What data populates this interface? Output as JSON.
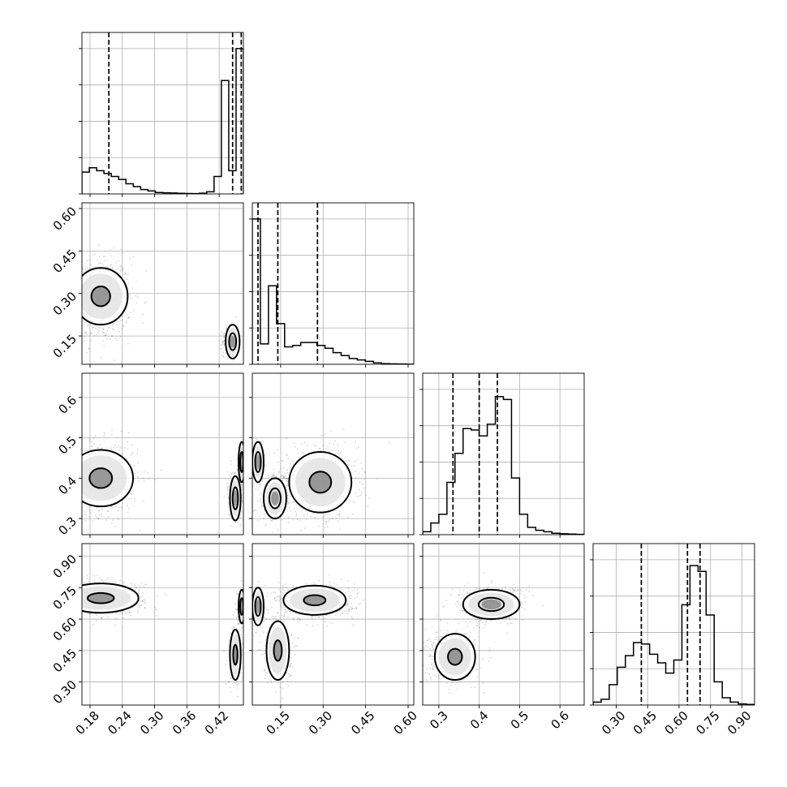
{
  "chart_data": {
    "type": "corner",
    "title": "",
    "columns": [
      {
        "range": [
          0.165,
          0.465
        ],
        "ticks": [
          "0.18",
          "0.24",
          "0.30",
          "0.36",
          "0.42"
        ],
        "tick_values": [
          0.18,
          0.24,
          0.3,
          0.36,
          0.42
        ],
        "quantiles": [
          0.215,
          0.445,
          0.461
        ]
      },
      {
        "range": [
          0.05,
          0.62
        ],
        "ticks": [
          "0.15",
          "0.30",
          "0.45",
          "0.60"
        ],
        "tick_values": [
          0.15,
          0.3,
          0.45,
          0.6
        ],
        "quantiles": [
          0.07,
          0.14,
          0.28
        ]
      },
      {
        "range": [
          0.26,
          0.66
        ],
        "ticks": [
          "0.3",
          "0.4",
          "0.5",
          "0.6"
        ],
        "tick_values": [
          0.3,
          0.4,
          0.5,
          0.6
        ],
        "quantiles": [
          0.335,
          0.4,
          0.445
        ]
      },
      {
        "range": [
          0.19,
          0.96
        ],
        "ticks": [
          "0.30",
          "0.45",
          "0.60",
          "0.75",
          "0.90"
        ],
        "tick_values": [
          0.3,
          0.45,
          0.6,
          0.75,
          0.9
        ],
        "quantiles": [
          0.42,
          0.64,
          0.7
        ]
      }
    ],
    "histograms": [
      {
        "heights": [
          0.15,
          0.18,
          0.16,
          0.14,
          0.12,
          0.1,
          0.07,
          0.05,
          0.03,
          0.02,
          0.01,
          0.008,
          0.006,
          0.004,
          0.003,
          0.002,
          0.005,
          0.015,
          0.12,
          0.78,
          0.16,
          1.0
        ]
      },
      {
        "heights": [
          1.0,
          0.14,
          0.54,
          0.28,
          0.12,
          0.13,
          0.15,
          0.15,
          0.13,
          0.11,
          0.08,
          0.06,
          0.04,
          0.03,
          0.02,
          0.01,
          0.004,
          0.003,
          0.002,
          0.001
        ]
      },
      {
        "heights": [
          0.02,
          0.08,
          0.14,
          0.36,
          0.56,
          0.73,
          0.72,
          0.68,
          0.76,
          0.95,
          0.93,
          0.39,
          0.14,
          0.05,
          0.03,
          0.02,
          0.01,
          0.006,
          0.004,
          0.002
        ]
      },
      {
        "heights": [
          0.02,
          0.04,
          0.14,
          0.26,
          0.34,
          0.43,
          0.42,
          0.35,
          0.29,
          0.22,
          0.31,
          0.69,
          0.96,
          0.92,
          0.62,
          0.16,
          0.05,
          0.02,
          0.008,
          0.004
        ]
      }
    ],
    "scatter_blobs": [
      {
        "row": 1,
        "col": 0,
        "blobs": [
          {
            "cx": 0.2,
            "cy": 0.28,
            "sx": 0.028,
            "sy": 0.075,
            "n": 700
          },
          {
            "cx": 0.44,
            "cy": 0.13,
            "sx": 0.007,
            "sy": 0.025,
            "n": 260
          }
        ]
      },
      {
        "row": 2,
        "col": 0,
        "blobs": [
          {
            "cx": 0.2,
            "cy": 0.4,
            "sx": 0.035,
            "sy": 0.045,
            "n": 700
          },
          {
            "cx": 0.45,
            "cy": 0.36,
            "sx": 0.007,
            "sy": 0.03,
            "n": 280
          },
          {
            "cx": 0.462,
            "cy": 0.44,
            "sx": 0.004,
            "sy": 0.02,
            "n": 200
          }
        ]
      },
      {
        "row": 2,
        "col": 1,
        "blobs": [
          {
            "cx": 0.28,
            "cy": 0.39,
            "sx": 0.07,
            "sy": 0.045,
            "n": 700
          },
          {
            "cx": 0.13,
            "cy": 0.35,
            "sx": 0.03,
            "sy": 0.03,
            "n": 250
          },
          {
            "cx": 0.07,
            "cy": 0.44,
            "sx": 0.01,
            "sy": 0.02,
            "n": 200
          }
        ]
      },
      {
        "row": 3,
        "col": 0,
        "blobs": [
          {
            "cx": 0.2,
            "cy": 0.7,
            "sx": 0.04,
            "sy": 0.04,
            "n": 650
          },
          {
            "cx": 0.45,
            "cy": 0.43,
            "sx": 0.007,
            "sy": 0.07,
            "n": 260
          },
          {
            "cx": 0.462,
            "cy": 0.66,
            "sx": 0.004,
            "sy": 0.04,
            "n": 200
          }
        ]
      },
      {
        "row": 3,
        "col": 1,
        "blobs": [
          {
            "cx": 0.27,
            "cy": 0.68,
            "sx": 0.07,
            "sy": 0.04,
            "n": 650
          },
          {
            "cx": 0.14,
            "cy": 0.45,
            "sx": 0.025,
            "sy": 0.08,
            "n": 260
          },
          {
            "cx": 0.07,
            "cy": 0.66,
            "sx": 0.01,
            "sy": 0.04,
            "n": 200
          }
        ]
      },
      {
        "row": 3,
        "col": 2,
        "blobs": [
          {
            "cx": 0.43,
            "cy": 0.67,
            "sx": 0.04,
            "sy": 0.04,
            "n": 700
          },
          {
            "cx": 0.33,
            "cy": 0.42,
            "sx": 0.03,
            "sy": 0.06,
            "n": 450
          }
        ]
      }
    ],
    "contour_regions": [
      {
        "row": 1,
        "col": 0,
        "cx": 0.2,
        "cy": 0.29,
        "rx": 0.05,
        "ry": 0.1,
        "inner": 0.35
      },
      {
        "row": 1,
        "col": 0,
        "cx": 0.445,
        "cy": 0.13,
        "rx": 0.013,
        "ry": 0.06,
        "inner": 0.5
      },
      {
        "row": 2,
        "col": 0,
        "cx": 0.2,
        "cy": 0.4,
        "rx": 0.06,
        "ry": 0.07,
        "inner": 0.35
      },
      {
        "row": 2,
        "col": 0,
        "cx": 0.45,
        "cy": 0.35,
        "rx": 0.01,
        "ry": 0.055,
        "inner": 0.5
      },
      {
        "row": 2,
        "col": 0,
        "cx": 0.462,
        "cy": 0.44,
        "rx": 0.006,
        "ry": 0.05,
        "inner": 0.5
      },
      {
        "row": 2,
        "col": 1,
        "cx": 0.29,
        "cy": 0.39,
        "rx": 0.11,
        "ry": 0.075,
        "inner": 0.35
      },
      {
        "row": 2,
        "col": 1,
        "cx": 0.13,
        "cy": 0.35,
        "rx": 0.04,
        "ry": 0.05,
        "inner": 0.5
      },
      {
        "row": 2,
        "col": 1,
        "cx": 0.07,
        "cy": 0.44,
        "rx": 0.02,
        "ry": 0.05,
        "inner": 0.5
      },
      {
        "row": 3,
        "col": 0,
        "cx": 0.2,
        "cy": 0.7,
        "rx": 0.07,
        "ry": 0.07,
        "inner": 0.35
      },
      {
        "row": 3,
        "col": 0,
        "cx": 0.45,
        "cy": 0.43,
        "rx": 0.01,
        "ry": 0.12,
        "inner": 0.4
      },
      {
        "row": 3,
        "col": 0,
        "cx": 0.462,
        "cy": 0.66,
        "rx": 0.006,
        "ry": 0.08,
        "inner": 0.5
      },
      {
        "row": 3,
        "col": 1,
        "cx": 0.27,
        "cy": 0.69,
        "rx": 0.11,
        "ry": 0.07,
        "inner": 0.35
      },
      {
        "row": 3,
        "col": 1,
        "cx": 0.14,
        "cy": 0.45,
        "rx": 0.04,
        "ry": 0.14,
        "inner": 0.35
      },
      {
        "row": 3,
        "col": 1,
        "cx": 0.07,
        "cy": 0.66,
        "rx": 0.02,
        "ry": 0.09,
        "inner": 0.5
      },
      {
        "row": 3,
        "col": 2,
        "cx": 0.43,
        "cy": 0.67,
        "rx": 0.07,
        "ry": 0.07,
        "inner": 0.45
      },
      {
        "row": 3,
        "col": 2,
        "cx": 0.34,
        "cy": 0.42,
        "rx": 0.05,
        "ry": 0.11,
        "inner": 0.35
      }
    ],
    "grid": true,
    "colors": {
      "line": "#000000",
      "grid": "#b0b0b0",
      "scatter": "#000000"
    }
  }
}
